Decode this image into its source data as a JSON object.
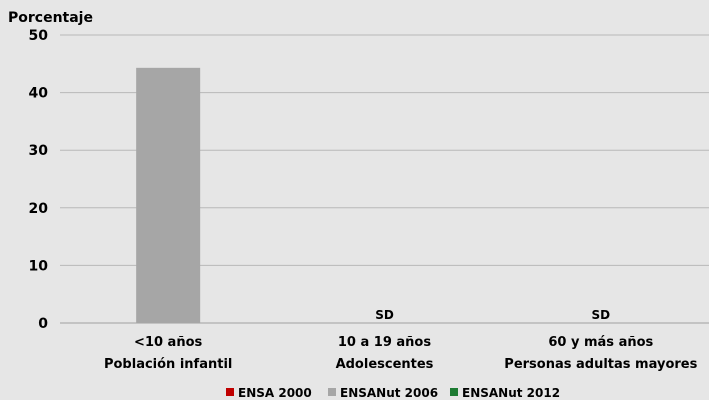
{
  "chart_data": {
    "type": "bar",
    "ylabel": "Porcentaje",
    "ylim": [
      0,
      50
    ],
    "yticks": [
      0,
      10,
      20,
      30,
      40,
      50
    ],
    "grid": true,
    "legend_position": "bottom",
    "categories": [
      {
        "line1": "<10 años",
        "line2": "Población infantil"
      },
      {
        "line1": "10 a 19 años",
        "line2": "Adolescentes"
      },
      {
        "line1": "60 y más años",
        "line2": "Personas adultas mayores"
      }
    ],
    "series": [
      {
        "name": "ENSA 2000",
        "color": "#c00000",
        "values": [
          null,
          null,
          null
        ]
      },
      {
        "name": "ENSANut 2006",
        "color": "#a6a6a6",
        "values": [
          44.3,
          null,
          null
        ]
      },
      {
        "name": "ENSANut 2012",
        "color": "#1e7b33",
        "values": [
          null,
          null,
          null
        ]
      }
    ],
    "annotations": [
      {
        "category_index": 1,
        "text": "SD"
      },
      {
        "category_index": 2,
        "text": "SD"
      }
    ]
  }
}
